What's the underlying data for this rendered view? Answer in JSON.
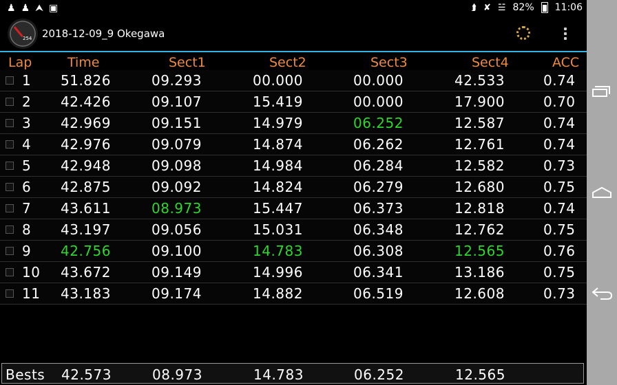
{
  "status_bar": {
    "notification_icons": [
      "usb-icon",
      "usb-icon",
      "upload-icon",
      "image-icon"
    ],
    "system_icons": [
      "bluetooth-icon",
      "vibrate-off-icon",
      "wifi-icon"
    ],
    "battery": "82%",
    "time": "11:06"
  },
  "action_bar": {
    "title": "2018-12-09_9 Okegawa",
    "app_icon_value": "254"
  },
  "table": {
    "headers": {
      "lap": "Lap",
      "time": "Time",
      "sect1": "Sect1",
      "sect2": "Sect2",
      "sect3": "Sect3",
      "sect4": "Sect4",
      "acc": "ACC"
    },
    "rows": [
      {
        "lap": "1",
        "time": "51.826",
        "sect1": "09.293",
        "sect2": "00.000",
        "sect3": "00.000",
        "sect4": "42.533",
        "acc": "0.74"
      },
      {
        "lap": "2",
        "time": "42.426",
        "sect1": "09.107",
        "sect2": "15.419",
        "sect3": "00.000",
        "sect4": "17.900",
        "acc": "0.70"
      },
      {
        "lap": "3",
        "time": "42.969",
        "sect1": "09.151",
        "sect2": "14.979",
        "sect3": "06.252",
        "sect4": "12.587",
        "acc": "0.74"
      },
      {
        "lap": "4",
        "time": "42.976",
        "sect1": "09.079",
        "sect2": "14.874",
        "sect3": "06.262",
        "sect4": "12.761",
        "acc": "0.74"
      },
      {
        "lap": "5",
        "time": "42.948",
        "sect1": "09.098",
        "sect2": "14.984",
        "sect3": "06.284",
        "sect4": "12.582",
        "acc": "0.73"
      },
      {
        "lap": "6",
        "time": "42.875",
        "sect1": "09.092",
        "sect2": "14.824",
        "sect3": "06.279",
        "sect4": "12.680",
        "acc": "0.75"
      },
      {
        "lap": "7",
        "time": "43.611",
        "sect1": "08.973",
        "sect2": "15.447",
        "sect3": "06.373",
        "sect4": "12.818",
        "acc": "0.74"
      },
      {
        "lap": "8",
        "time": "43.197",
        "sect1": "09.056",
        "sect2": "15.031",
        "sect3": "06.348",
        "sect4": "12.762",
        "acc": "0.75"
      },
      {
        "lap": "9",
        "time": "42.756",
        "sect1": "09.100",
        "sect2": "14.783",
        "sect3": "06.308",
        "sect4": "12.565",
        "acc": "0.76"
      },
      {
        "lap": "10",
        "time": "43.672",
        "sect1": "09.149",
        "sect2": "14.996",
        "sect3": "06.341",
        "sect4": "13.186",
        "acc": "0.75"
      },
      {
        "lap": "11",
        "time": "43.183",
        "sect1": "09.174",
        "sect2": "14.882",
        "sect3": "06.519",
        "sect4": "12.608",
        "acc": "0.73"
      }
    ],
    "best_cells": {
      "time": "9",
      "sect1": "7",
      "sect2": "9",
      "sect3": "3",
      "sect4": "9"
    }
  },
  "bests": {
    "label": "Bests",
    "time": "42.573",
    "sect1": "08.973",
    "sect2": "14.783",
    "sect3": "06.252",
    "sect4": "12.565"
  },
  "colors": {
    "header_text": "#f08a3c",
    "best_highlight": "#2fd62f",
    "accent_line": "#33b5e5",
    "nav_bar": "#a9a9a9"
  },
  "nav_bar": {
    "icons": [
      "recents-icon",
      "home-icon",
      "back-icon"
    ]
  }
}
